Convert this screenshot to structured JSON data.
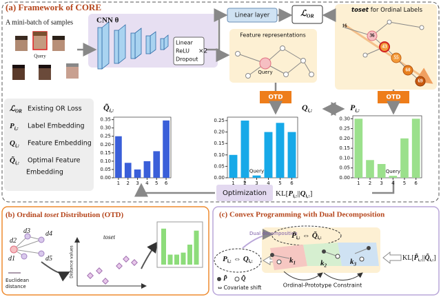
{
  "panel_a": {
    "title": "(a) Framework of CORE",
    "batch_label": "A mini-batch of samples",
    "query_face": "Query",
    "cnn": "CNN θ",
    "mlp": [
      "Linear",
      "ReLU",
      "Dropout"
    ],
    "mlp_repeat": "×2",
    "linear_layer": "Linear layer",
    "loss": {
      "sym": "ℒ",
      "sub": "OR"
    },
    "feature_title": "Feature representations",
    "feature_query": "Query",
    "toset_em": "toset",
    "toset_rest": "for Ordinal Labels",
    "toset_nodes": [
      "16",
      "36",
      "43",
      "55",
      "60",
      "69"
    ],
    "otd": [
      "OTD",
      "OTD"
    ],
    "legend": [
      {
        "sym": "ℒ",
        "sub": "OR",
        "text": [
          "Existing OR Loss"
        ]
      },
      {
        "sym": "P",
        "sub": "i,:",
        "text": [
          "Label Embedding"
        ]
      },
      {
        "sym": "Q",
        "sub": "i,:",
        "text": [
          "Feature Embedding"
        ]
      },
      {
        "sym": "Q̃",
        "sub": "i,:",
        "text": [
          "Optimal Feature",
          "Embedding"
        ]
      }
    ],
    "charts": [
      {
        "sym": "Q̃",
        "sub": "i,:",
        "color": "#3a5fd9",
        "categories": [
          "1",
          "2",
          "3",
          "4",
          "5",
          "6"
        ],
        "values": [
          0.25,
          0.09,
          0.05,
          0.1,
          0.16,
          0.345
        ],
        "ylim": [
          0,
          0.365
        ],
        "yticks": [
          {
            "value": 0,
            "label": "0.00"
          },
          {
            "value": 0.05,
            "label": "0.05"
          },
          {
            "value": 0.1,
            "label": "0.10"
          },
          {
            "value": 0.15,
            "label": "0.15"
          },
          {
            "value": 0.2,
            "label": "0.20"
          },
          {
            "value": 0.25,
            "label": "0.25"
          },
          {
            "value": 0.3,
            "label": "0.30"
          },
          {
            "value": 0.35,
            "label": "0.35"
          }
        ]
      },
      {
        "sym": "Q",
        "sub": "i,:",
        "color": "#17a9e8",
        "categories": [
          "1",
          "2",
          "3",
          "4",
          "5",
          "6"
        ],
        "values": [
          0.1,
          0.25,
          0.01,
          0.2,
          0.24,
          0.2
        ],
        "ylim": [
          0,
          0.265
        ],
        "query_label": "Query",
        "yticks": [
          {
            "value": 0,
            "label": "0.00"
          },
          {
            "value": 0.05,
            "label": "0.05"
          },
          {
            "value": 0.1,
            "label": "0.10"
          },
          {
            "value": 0.15,
            "label": "0.15"
          },
          {
            "value": 0.2,
            "label": "0.20"
          },
          {
            "value": 0.25,
            "label": "0.25"
          }
        ]
      },
      {
        "sym": "P",
        "sub": "i,:",
        "color": "#9be08c",
        "categories": [
          "1",
          "2",
          "3",
          "4",
          "5",
          "6"
        ],
        "values": [
          0.3,
          0.09,
          0.07,
          0.01,
          0.2,
          0.3
        ],
        "ylim": [
          0,
          0.315
        ],
        "query_label": "Query",
        "yticks": [
          {
            "value": 0,
            "label": "0.00"
          },
          {
            "value": 0.05,
            "label": "0.05"
          },
          {
            "value": 0.1,
            "label": "0.10"
          },
          {
            "value": 0.15,
            "label": "0.15"
          },
          {
            "value": 0.2,
            "label": "0.20"
          },
          {
            "value": 0.25,
            "label": "0.25"
          },
          {
            "value": 0.3,
            "label": "0.30"
          }
        ]
      }
    ],
    "optimization": "Optimization",
    "kl": {
      "pre": "KL[",
      "p": "P",
      "p_sub": "i,:",
      "sep": "||",
      "q": "Q",
      "q_sub": "i,:",
      "post": "]"
    }
  },
  "panel_b": {
    "title_pre": "(b) Ordinal ",
    "title_em": "toset",
    "title_post": " Distribution (OTD)",
    "nodes": [
      "d3",
      "d2",
      "d4",
      "d1",
      "d5"
    ],
    "euclid": [
      "Euclidean",
      "distance"
    ],
    "toset": "toset",
    "y_axis": "Distance values",
    "mini_values": [
      0.9,
      0.25,
      0.25,
      0.3,
      0.5,
      0.85
    ]
  },
  "panel_c": {
    "title": "(c) Convex Programming with Dual Decomposition",
    "dual": "Dual decomposition",
    "left": {
      "p": "P",
      "sub1": "i,:",
      "arrow": "⇔",
      "q": "Q",
      "sub2": "i,:"
    },
    "right": {
      "p": "P̃",
      "sub1": "i,:",
      "arrow": "⇔",
      "q": "Q̃",
      "sub2": "i,:"
    },
    "ks": [
      {
        "k": "k",
        "sub": "1"
      },
      {
        "k": "k",
        "sub": "2"
      },
      {
        "k": "k",
        "sub": "3"
      }
    ],
    "constraint": "Ordinal-Prototype Constraint",
    "legend_p": "P̃",
    "legend_q": "Q̃",
    "covariate": "⇔ Covariate shift",
    "kl": {
      "pre": "KL[",
      "p": "P̃",
      "p_sub": "i,:",
      "sep": "||",
      "q": "Q̃",
      "q_sub": "i,:",
      "post": "]"
    }
  }
}
